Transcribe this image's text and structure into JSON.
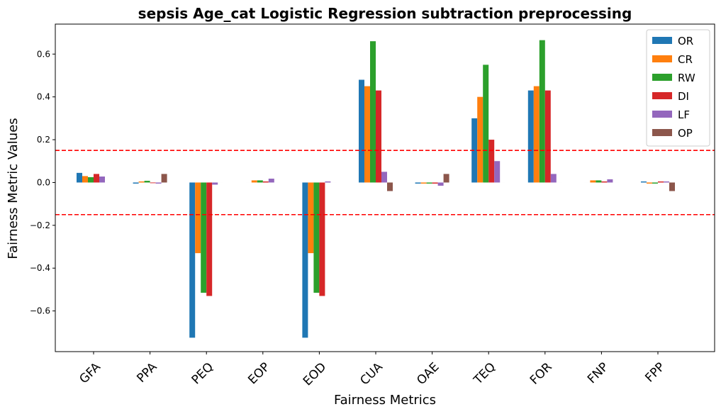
{
  "chart_data": {
    "type": "bar",
    "title": "sepsis Age_cat Logistic Regression subtraction preprocessing",
    "xlabel": "Fairness Metrics",
    "ylabel": "Fairness Metric Values",
    "ylim": [
      -0.79,
      0.74
    ],
    "yticks": [
      -0.6,
      -0.4,
      -0.2,
      0.0,
      0.2,
      0.4,
      0.6
    ],
    "ytick_labels": [
      "−0.6",
      "−0.4",
      "−0.2",
      "0.0",
      "0.2",
      "0.4",
      "0.6"
    ],
    "categories": [
      "GFA",
      "PPA",
      "PEQ",
      "EOP",
      "EOD",
      "CUA",
      "OAE",
      "TEQ",
      "FOR",
      "FNP",
      "FPP"
    ],
    "thresholds": [
      0.15,
      -0.15
    ],
    "threshold_color": "#ff0000",
    "legend_position": "top-right",
    "series": [
      {
        "name": "OR",
        "color": "#1f77b4",
        "values": [
          0.045,
          -0.005,
          -0.725,
          0.0,
          -0.725,
          0.48,
          -0.005,
          0.3,
          0.43,
          0.0,
          0.005
        ]
      },
      {
        "name": "CR",
        "color": "#ff7f0e",
        "values": [
          0.03,
          0.005,
          -0.33,
          0.01,
          -0.33,
          0.45,
          -0.005,
          0.4,
          0.45,
          0.01,
          -0.005
        ]
      },
      {
        "name": "RW",
        "color": "#2ca02c",
        "values": [
          0.025,
          0.008,
          -0.515,
          0.01,
          -0.515,
          0.66,
          -0.005,
          0.55,
          0.665,
          0.01,
          -0.005
        ]
      },
      {
        "name": "DI",
        "color": "#d62728",
        "values": [
          0.04,
          -0.003,
          -0.53,
          0.005,
          -0.53,
          0.43,
          -0.005,
          0.2,
          0.43,
          0.005,
          0.005
        ]
      },
      {
        "name": "LF",
        "color": "#9467bd",
        "values": [
          0.028,
          -0.005,
          -0.01,
          0.018,
          0.005,
          0.05,
          -0.015,
          0.1,
          0.04,
          0.015,
          0.005
        ]
      },
      {
        "name": "OP",
        "color": "#8c564b",
        "values": [
          0.0,
          0.04,
          0.0,
          0.0,
          0.0,
          -0.04,
          0.04,
          0.0,
          0.0,
          0.0,
          -0.04
        ]
      }
    ]
  }
}
